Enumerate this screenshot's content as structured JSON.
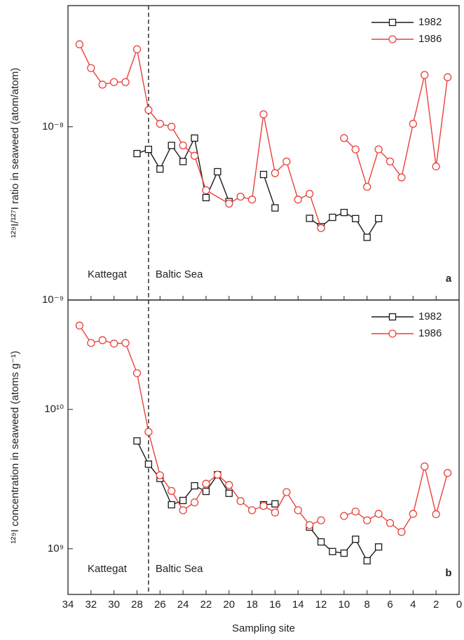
{
  "chart_data": [
    {
      "type": "line",
      "ylabel": "¹²⁹I/¹²⁷I ratio in seaweed (atom/atom)",
      "log_y": true,
      "xlim": [
        34,
        0
      ],
      "xticks": [
        34,
        32,
        30,
        28,
        26,
        24,
        22,
        20,
        18,
        16,
        14,
        12,
        10,
        8,
        6,
        4,
        2,
        0
      ],
      "ylim": [
        1e-09,
        5e-08
      ],
      "yticks": [
        {
          "value": 1e-09,
          "label": "10⁻⁹"
        },
        {
          "value": 1e-08,
          "label": "10⁻⁸"
        }
      ],
      "legend": "upper right",
      "divider_x": 27,
      "annotations": [
        "Kattegat",
        "Baltic Sea"
      ],
      "panel_label": "a",
      "series": [
        {
          "name": "1982",
          "color": "#1a1a1a",
          "marker": "square",
          "x": [
            28,
            27,
            26,
            25,
            24,
            23,
            22,
            21,
            20,
            19,
            17,
            16,
            15,
            13,
            12,
            11,
            10,
            9,
            8,
            7
          ],
          "values": [
            7e-09,
            7.4e-09,
            5.7e-09,
            7.8e-09,
            6.3e-09,
            8.6e-09,
            3.9e-09,
            5.5e-09,
            3.7e-09,
            null,
            5.3e-09,
            3.4e-09,
            null,
            2.96e-09,
            2.65e-09,
            3e-09,
            3.2e-09,
            2.95e-09,
            2.3e-09,
            2.95e-09
          ]
        },
        {
          "name": "1986",
          "color": "#e8413c",
          "marker": "circle",
          "x": [
            33,
            32,
            31,
            30,
            29,
            28,
            27,
            26,
            25,
            24,
            23,
            22,
            20,
            19,
            18,
            17,
            16,
            15,
            14,
            13,
            12,
            11,
            10,
            9,
            8,
            7,
            6,
            5,
            4,
            3,
            2,
            1
          ],
          "values": [
            2.99e-08,
            2.18e-08,
            1.75e-08,
            1.81e-08,
            1.81e-08,
            2.8e-08,
            1.25e-08,
            1.04e-08,
            1e-08,
            7.8e-09,
            6.8e-09,
            4.3e-09,
            3.6e-09,
            3.95e-09,
            3.8e-09,
            1.18e-08,
            5.4e-09,
            6.3e-09,
            3.8e-09,
            4.1e-09,
            2.6e-09,
            null,
            8.6e-09,
            7.4e-09,
            4.5e-09,
            7.4e-09,
            6.3e-09,
            5.1e-09,
            1.04e-08,
            1.99e-08,
            5.9e-09,
            1.93e-08
          ]
        }
      ]
    },
    {
      "type": "line",
      "xlabel": "Sampling site",
      "ylabel": "¹²⁹I concentration in seaweed (atoms g⁻¹)",
      "log_y": true,
      "xlim": [
        34,
        0
      ],
      "xticks": [
        34,
        32,
        30,
        28,
        26,
        24,
        22,
        20,
        18,
        16,
        14,
        12,
        10,
        8,
        6,
        4,
        2,
        0
      ],
      "ylim": [
        470000000.0,
        61000000000.0
      ],
      "yticks": [
        {
          "value": 1000000000.0,
          "label": "10⁹"
        },
        {
          "value": 10000000000.0,
          "label": "10¹⁰"
        }
      ],
      "legend": "upper right",
      "divider_x": 27,
      "annotations": [
        "Kattegat",
        "Baltic Sea"
      ],
      "panel_label": "b",
      "series": [
        {
          "name": "1982",
          "color": "#1a1a1a",
          "marker": "square",
          "x": [
            28,
            27,
            26,
            25,
            24,
            23,
            22,
            21,
            20,
            19,
            17,
            16,
            15,
            13,
            12,
            11,
            10,
            9,
            8,
            7
          ],
          "values": [
            5940000000.0,
            4050000000.0,
            3200000000.0,
            2070000000.0,
            2220000000.0,
            2830000000.0,
            2580000000.0,
            3400000000.0,
            2500000000.0,
            null,
            2070000000.0,
            2100000000.0,
            null,
            1430000000.0,
            1120000000.0,
            955000000.0,
            930000000.0,
            1170000000.0,
            820000000.0,
            1030000000.0
          ]
        },
        {
          "name": "1986",
          "color": "#e8413c",
          "marker": "circle",
          "x": [
            33,
            32,
            31,
            30,
            29,
            28,
            27,
            26,
            25,
            24,
            23,
            22,
            21,
            20,
            19,
            18,
            17,
            16,
            15,
            14,
            13,
            12,
            11,
            10,
            9,
            8,
            7,
            6,
            5,
            4,
            3,
            2,
            1
          ],
          "values": [
            40000000000.0,
            30000000000.0,
            31400000000.0,
            29700000000.0,
            30000000000.0,
            18200000000.0,
            6900000000.0,
            3370000000.0,
            2600000000.0,
            1890000000.0,
            2150000000.0,
            2930000000.0,
            3400000000.0,
            2870000000.0,
            2200000000.0,
            1890000000.0,
            2030000000.0,
            1820000000.0,
            2550000000.0,
            1890000000.0,
            1480000000.0,
            1600000000.0,
            null,
            1720000000.0,
            1850000000.0,
            1600000000.0,
            1780000000.0,
            1530000000.0,
            1320000000.0,
            1780000000.0,
            3900000000.0,
            1770000000.0,
            3500000000.0
          ]
        }
      ]
    }
  ]
}
